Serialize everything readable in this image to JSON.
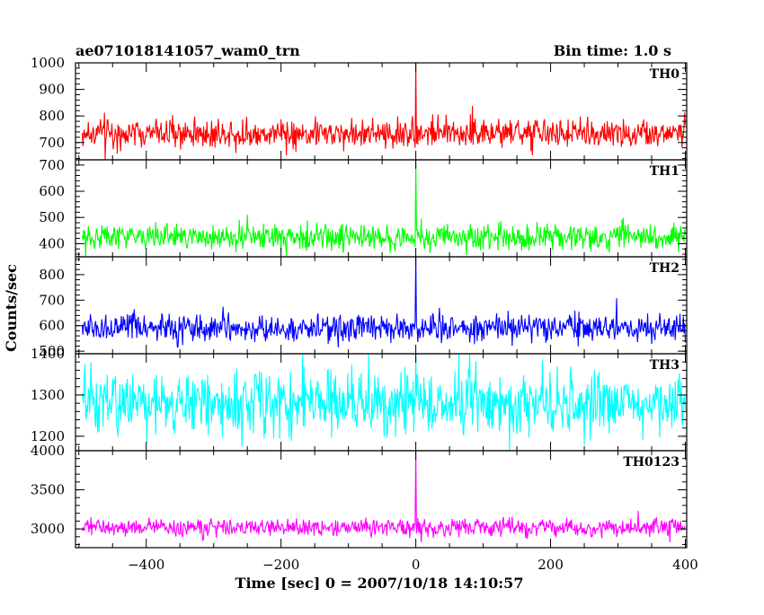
{
  "header": {
    "title": "ae071018141057_wam0_trn",
    "bin_time": "Bin time: 1.0 s"
  },
  "axes": {
    "xlabel": "Time [sec] 0 = 2007/10/18 14:10:57",
    "ylabel": "Counts/sec"
  },
  "chart_data": {
    "type": "line",
    "title": "ae071018141057_wam0_trn",
    "xlabel": "Time [sec] 0 = 2007/10/18 14:10:57",
    "ylabel": "Counts/sec",
    "xlim": [
      -505,
      402
    ],
    "x_ticks": [
      -400,
      -200,
      0,
      200,
      400
    ],
    "x_tick_labels": [
      "−400",
      "−200",
      "0",
      "200",
      "400"
    ],
    "sample_step_s": 1,
    "grid": false,
    "series": [
      {
        "name": "TH0",
        "color": "#ff0000",
        "ylim": [
          635,
          1000
        ],
        "y_ticks": [
          700,
          800,
          900,
          1000
        ],
        "baseline": 735,
        "noise": 28,
        "peak_y": 1000,
        "event_x": 0
      },
      {
        "name": "TH1",
        "color": "#00ff00",
        "ylim": [
          350,
          720
        ],
        "y_ticks": [
          400,
          500,
          600,
          700
        ],
        "baseline": 425,
        "noise": 25,
        "peak_y": 720,
        "event_x": 0
      },
      {
        "name": "TH2",
        "color": "#0000ff",
        "ylim": [
          490,
          870
        ],
        "y_ticks": [
          500,
          600,
          700,
          800
        ],
        "baseline": 590,
        "noise": 27,
        "peak_y": 870,
        "event_x": 0
      },
      {
        "name": "TH3",
        "color": "#00ffff",
        "ylim": [
          1165,
          1400
        ],
        "y_ticks": [
          1200,
          1300,
          1400
        ],
        "baseline": 1280,
        "noise": 38,
        "peak_y": 1400,
        "event_x": 0
      },
      {
        "name": "TH0123",
        "color": "#ff00ff",
        "ylim": [
          2760,
          4000
        ],
        "y_ticks": [
          3000,
          3500,
          4000
        ],
        "baseline": 3020,
        "noise": 55,
        "peak_y": 4000,
        "event_x": 0
      }
    ]
  }
}
